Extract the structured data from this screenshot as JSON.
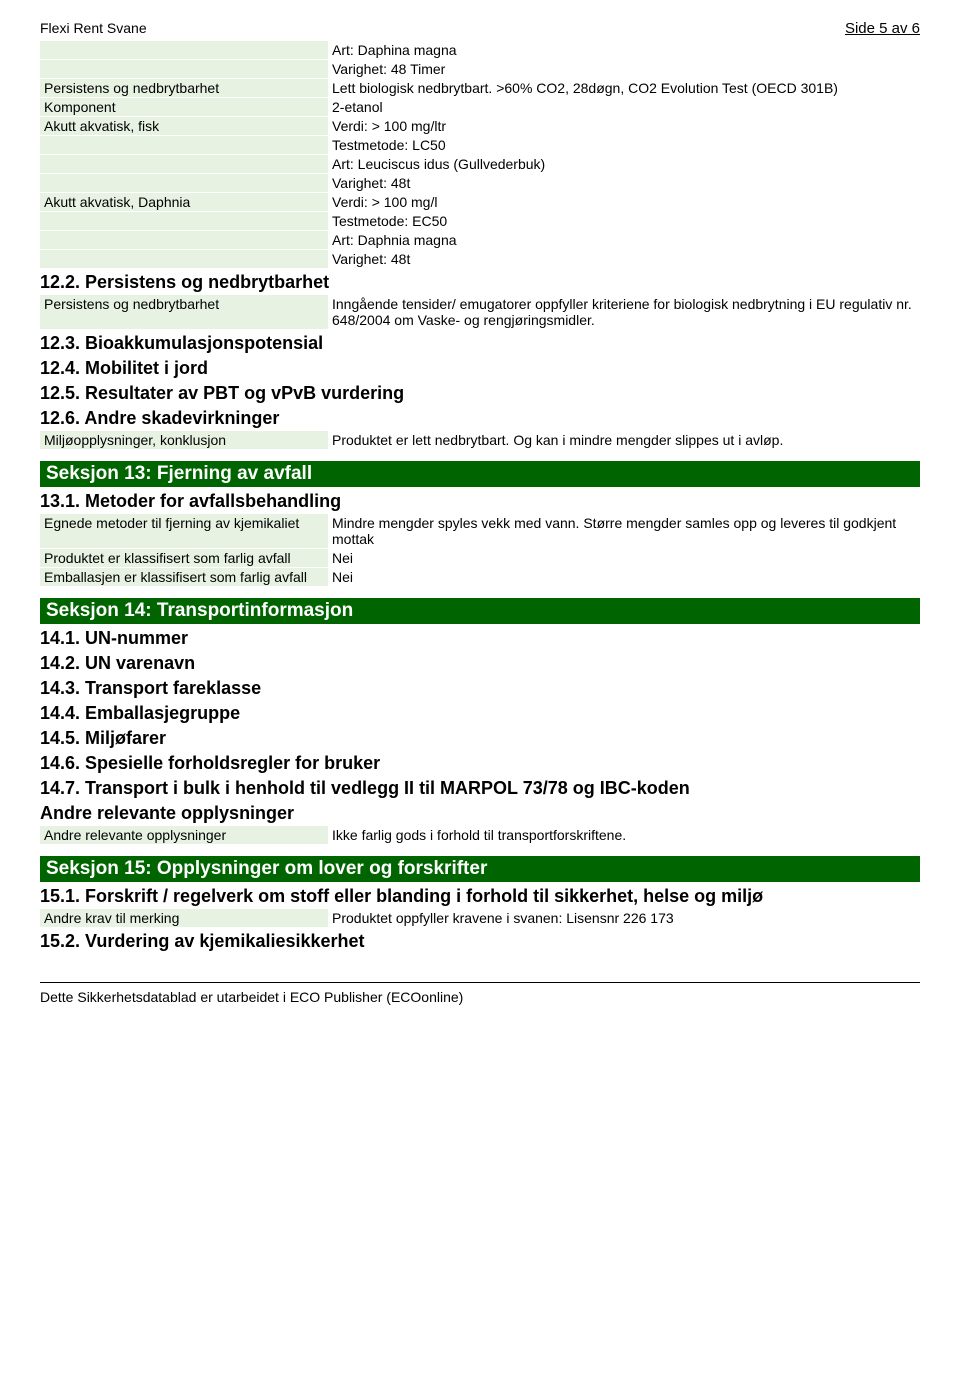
{
  "header": {
    "title": "Flexi Rent Svane",
    "page": "Side 5 av 6"
  },
  "block_intro": [
    "Art: Daphina magna",
    "Varighet: 48 Timer"
  ],
  "rows1": [
    {
      "label": "Persistens og nedbrytbarhet",
      "values": [
        "Lett biologisk nedbrytbart. >60% CO2, 28døgn, CO2 Evolution Test (OECD 301B)"
      ]
    },
    {
      "label": "Komponent",
      "values": [
        "2-etanol"
      ]
    },
    {
      "label": "Akutt akvatisk, fisk",
      "values": [
        "Verdi: > 100 mg/ltr",
        "Testmetode: LC50",
        "Art: Leuciscus idus (Gullvederbuk)",
        "Varighet: 48t"
      ]
    },
    {
      "label": "Akutt akvatisk, Daphnia",
      "values": [
        "Verdi: > 100 mg/l",
        "Testmetode: EC50",
        "Art: Daphnia magna",
        "Varighet: 48t"
      ]
    }
  ],
  "sub12_2": "12.2. Persistens og nedbrytbarhet",
  "rows2": [
    {
      "label": "Persistens og nedbrytbarhet",
      "values": [
        "Inngående tensider/ emugatorer oppfyller kriteriene for biologisk nedbrytning i EU regulativ nr. 648/2004 om Vaske- og rengjøringsmidler."
      ]
    }
  ],
  "sub12_3": "12.3. Bioakkumulasjonspotensial",
  "sub12_4": "12.4. Mobilitet i jord",
  "sub12_5": "12.5. Resultater av PBT og vPvB vurdering",
  "sub12_6": "12.6. Andre skadevirkninger",
  "rows3": [
    {
      "label": "Miljøopplysninger, konklusjon",
      "values": [
        "Produktet er lett nedbrytbart. Og kan i mindre mengder slippes ut i avløp."
      ]
    }
  ],
  "section13": "Seksjon 13: Fjerning av avfall",
  "sub13_1": "13.1. Metoder for avfallsbehandling",
  "rows4": [
    {
      "label": "Egnede metoder til fjerning av kjemikaliet",
      "values": [
        "Mindre mengder spyles vekk med vann. Større mengder samles opp og leveres til godkjent mottak"
      ]
    },
    {
      "label": "Produktet er klassifisert som farlig avfall",
      "values": [
        "Nei"
      ]
    },
    {
      "label": "Emballasjen er klassifisert som farlig avfall",
      "values": [
        "Nei"
      ]
    }
  ],
  "section14": "Seksjon 14: Transportinformasjon",
  "sub14_1": "14.1. UN-nummer",
  "sub14_2": "14.2. UN varenavn",
  "sub14_3": "14.3. Transport fareklasse",
  "sub14_4": "14.4. Emballasjegruppe",
  "sub14_5": "14.5. Miljøfarer",
  "sub14_6": "14.6. Spesielle forholdsregler for bruker",
  "sub14_7": "14.7. Transport i bulk i henhold til vedlegg II til MARPOL 73/78 og IBC-koden",
  "sub14_other": "Andre relevante opplysninger",
  "rows5": [
    {
      "label": "Andre relevante opplysninger",
      "values": [
        "Ikke farlig gods i forhold til transportforskriftene."
      ]
    }
  ],
  "section15": "Seksjon 15: Opplysninger om lover og forskrifter",
  "sub15_1": "15.1. Forskrift / regelverk om stoff eller blanding i forhold til sikkerhet, helse og miljø",
  "rows6": [
    {
      "label": "Andre krav til merking",
      "values": [
        "Produktet oppfyller kravene i svanen: Lisensnr 226 173"
      ]
    }
  ],
  "sub15_2": "15.2. Vurdering av kjemikaliesikkerhet",
  "footer": "Dette Sikkerhetsdatablad er utarbeidet i ECO Publisher (ECOonline)"
}
